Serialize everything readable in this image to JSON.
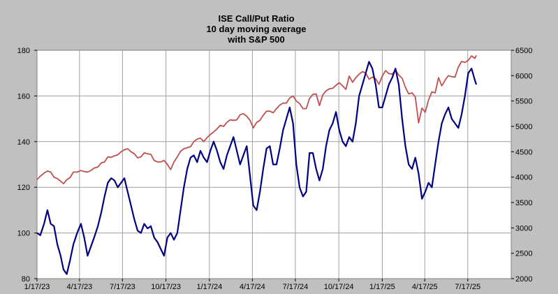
{
  "chart_data": {
    "type": "line",
    "title_lines": [
      "ISE  Call/Put Ratio",
      "10 day moving average",
      "with S&P 500"
    ],
    "colors": {
      "background": "#c0c0c0",
      "plot_background": "#ffffff",
      "grid": "#a0a0a0",
      "call_put_line": "#000080",
      "sp500_line": "#c0504d"
    },
    "x_ticks": [
      "1/17/23",
      "4/17/23",
      "7/17/23",
      "10/17/23",
      "1/17/24",
      "4/17/24",
      "7/17/24",
      "10/17/24",
      "1/17/25",
      "4/17/25",
      "7/17/25"
    ],
    "y_left": {
      "range": [
        80,
        180
      ],
      "ticks": [
        "80",
        "100",
        "120",
        "140",
        "160",
        "180"
      ]
    },
    "y_right": {
      "range": [
        2000,
        6500
      ],
      "ticks": [
        "2000",
        "2500",
        "3000",
        "3500",
        "4000",
        "4500",
        "5000",
        "5500",
        "6000",
        "6500"
      ]
    },
    "grid": true,
    "series": [
      {
        "axis": "left",
        "points": [
          [
            "1/17/23",
            100
          ],
          [
            "1/24/23",
            99
          ],
          [
            "2/1/23",
            104
          ],
          [
            "2/8/23",
            110
          ],
          [
            "2/15/23",
            104
          ],
          [
            "2/22/23",
            103
          ],
          [
            "3/1/23",
            95
          ],
          [
            "3/8/23",
            90
          ],
          [
            "3/14/23",
            84
          ],
          [
            "3/21/23",
            82
          ],
          [
            "3/28/23",
            88
          ],
          [
            "4/4/23",
            95
          ],
          [
            "4/12/23",
            100
          ],
          [
            "4/20/23",
            104
          ],
          [
            "4/27/23",
            98
          ],
          [
            "5/4/23",
            90
          ],
          [
            "5/11/23",
            94
          ],
          [
            "5/18/23",
            98
          ],
          [
            "5/26/23",
            103
          ],
          [
            "6/2/23",
            109
          ],
          [
            "6/9/23",
            116
          ],
          [
            "6/16/23",
            122
          ],
          [
            "6/23/23",
            124
          ],
          [
            "6/30/23",
            123
          ],
          [
            "7/7/23",
            120
          ],
          [
            "7/14/23",
            122
          ],
          [
            "7/21/23",
            124
          ],
          [
            "7/28/23",
            118
          ],
          [
            "8/4/23",
            112
          ],
          [
            "8/11/23",
            106
          ],
          [
            "8/18/23",
            101
          ],
          [
            "8/25/23",
            100
          ],
          [
            "9/1/23",
            104
          ],
          [
            "9/8/23",
            102
          ],
          [
            "9/15/23",
            103
          ],
          [
            "9/22/23",
            98
          ],
          [
            "9/29/23",
            96
          ],
          [
            "10/6/23",
            93
          ],
          [
            "10/13/23",
            90
          ],
          [
            "10/20/23",
            98
          ],
          [
            "10/27/23",
            100
          ],
          [
            "11/3/23",
            97
          ],
          [
            "11/10/23",
            100
          ],
          [
            "11/17/23",
            110
          ],
          [
            "11/24/23",
            120
          ],
          [
            "12/1/23",
            128
          ],
          [
            "12/8/23",
            133
          ],
          [
            "12/15/23",
            134
          ],
          [
            "12/22/23",
            131
          ],
          [
            "12/29/23",
            136
          ],
          [
            "1/5/24",
            133
          ],
          [
            "1/12/24",
            131
          ],
          [
            "1/19/24",
            136
          ],
          [
            "1/26/24",
            140
          ],
          [
            "2/2/24",
            136
          ],
          [
            "2/9/24",
            131
          ],
          [
            "2/16/24",
            128
          ],
          [
            "2/23/24",
            134
          ],
          [
            "3/1/24",
            138
          ],
          [
            "3/8/24",
            142
          ],
          [
            "3/15/24",
            136
          ],
          [
            "3/22/24",
            130
          ],
          [
            "3/29/24",
            134
          ],
          [
            "4/5/24",
            138
          ],
          [
            "4/12/24",
            125
          ],
          [
            "4/19/24",
            112
          ],
          [
            "4/26/24",
            110
          ],
          [
            "5/3/24",
            118
          ],
          [
            "5/10/24",
            128
          ],
          [
            "5/17/24",
            137
          ],
          [
            "5/24/24",
            138
          ],
          [
            "5/31/24",
            130
          ],
          [
            "6/7/24",
            130
          ],
          [
            "6/14/24",
            137
          ],
          [
            "6/21/24",
            145
          ],
          [
            "6/28/24",
            150
          ],
          [
            "7/5/24",
            155
          ],
          [
            "7/12/24",
            148
          ],
          [
            "7/19/24",
            130
          ],
          [
            "7/26/24",
            120
          ],
          [
            "8/2/24",
            116
          ],
          [
            "8/9/24",
            118
          ],
          [
            "8/16/24",
            135
          ],
          [
            "8/23/24",
            135
          ],
          [
            "8/30/24",
            128
          ],
          [
            "9/6/24",
            123
          ],
          [
            "9/13/24",
            128
          ],
          [
            "9/20/24",
            138
          ],
          [
            "9/27/24",
            145
          ],
          [
            "10/4/24",
            148
          ],
          [
            "10/11/24",
            153
          ],
          [
            "10/18/24",
            145
          ],
          [
            "10/25/24",
            140
          ],
          [
            "11/1/24",
            138
          ],
          [
            "11/8/24",
            142
          ],
          [
            "11/15/24",
            140
          ],
          [
            "11/22/24",
            148
          ],
          [
            "11/29/24",
            160
          ],
          [
            "12/6/24",
            165
          ],
          [
            "12/13/24",
            170
          ],
          [
            "12/20/24",
            175
          ],
          [
            "12/27/24",
            172
          ],
          [
            "1/3/25",
            165
          ],
          [
            "1/10/25",
            155
          ],
          [
            "1/17/25",
            155
          ],
          [
            "1/24/25",
            160
          ],
          [
            "1/31/25",
            165
          ],
          [
            "2/7/25",
            168
          ],
          [
            "2/14/25",
            172
          ],
          [
            "2/21/25",
            165
          ],
          [
            "2/28/25",
            150
          ],
          [
            "3/7/25",
            138
          ],
          [
            "3/14/25",
            130
          ],
          [
            "3/21/25",
            128
          ],
          [
            "3/28/25",
            133
          ],
          [
            "4/4/25",
            126
          ],
          [
            "4/11/25",
            115
          ],
          [
            "4/18/25",
            118
          ],
          [
            "4/25/25",
            122
          ],
          [
            "5/2/25",
            120
          ],
          [
            "5/9/25",
            130
          ],
          [
            "5/16/25",
            140
          ],
          [
            "5/23/25",
            148
          ],
          [
            "5/30/25",
            152
          ],
          [
            "6/6/25",
            155
          ],
          [
            "6/13/25",
            150
          ],
          [
            "6/20/25",
            148
          ],
          [
            "6/27/25",
            146
          ],
          [
            "7/4/25",
            152
          ],
          [
            "7/11/25",
            160
          ],
          [
            "7/18/25",
            170
          ],
          [
            "7/25/25",
            172
          ],
          [
            "8/1/25",
            167
          ],
          [
            "8/4/25",
            165
          ]
        ]
      },
      {
        "axis": "right",
        "points": [
          [
            "1/17/23",
            3950
          ],
          [
            "1/24/23",
            4020
          ],
          [
            "2/1/23",
            4080
          ],
          [
            "2/8/23",
            4120
          ],
          [
            "2/15/23",
            4100
          ],
          [
            "2/22/23",
            4000
          ],
          [
            "3/1/23",
            3970
          ],
          [
            "3/8/23",
            3920
          ],
          [
            "3/14/23",
            3870
          ],
          [
            "3/21/23",
            3950
          ],
          [
            "3/28/23",
            3990
          ],
          [
            "4/4/23",
            4100
          ],
          [
            "4/12/23",
            4100
          ],
          [
            "4/20/23",
            4130
          ],
          [
            "4/27/23",
            4110
          ],
          [
            "5/4/23",
            4100
          ],
          [
            "5/11/23",
            4130
          ],
          [
            "5/18/23",
            4180
          ],
          [
            "5/26/23",
            4200
          ],
          [
            "6/2/23",
            4280
          ],
          [
            "6/9/23",
            4300
          ],
          [
            "6/16/23",
            4400
          ],
          [
            "6/23/23",
            4390
          ],
          [
            "6/30/23",
            4420
          ],
          [
            "7/7/23",
            4440
          ],
          [
            "7/14/23",
            4500
          ],
          [
            "7/21/23",
            4540
          ],
          [
            "7/28/23",
            4560
          ],
          [
            "8/4/23",
            4500
          ],
          [
            "8/11/23",
            4460
          ],
          [
            "8/18/23",
            4380
          ],
          [
            "8/25/23",
            4400
          ],
          [
            "9/1/23",
            4480
          ],
          [
            "9/8/23",
            4460
          ],
          [
            "9/15/23",
            4450
          ],
          [
            "9/22/23",
            4330
          ],
          [
            "9/29/23",
            4300
          ],
          [
            "10/6/23",
            4300
          ],
          [
            "10/13/23",
            4330
          ],
          [
            "10/20/23",
            4250
          ],
          [
            "10/27/23",
            4150
          ],
          [
            "11/3/23",
            4300
          ],
          [
            "11/10/23",
            4400
          ],
          [
            "11/17/23",
            4510
          ],
          [
            "11/24/23",
            4560
          ],
          [
            "12/1/23",
            4580
          ],
          [
            "12/8/23",
            4600
          ],
          [
            "12/15/23",
            4700
          ],
          [
            "12/22/23",
            4750
          ],
          [
            "12/29/23",
            4770
          ],
          [
            "1/5/24",
            4700
          ],
          [
            "1/12/24",
            4780
          ],
          [
            "1/19/24",
            4840
          ],
          [
            "1/26/24",
            4890
          ],
          [
            "2/2/24",
            4950
          ],
          [
            "2/9/24",
            5020
          ],
          [
            "2/16/24",
            5000
          ],
          [
            "2/23/24",
            5080
          ],
          [
            "3/1/24",
            5130
          ],
          [
            "3/8/24",
            5120
          ],
          [
            "3/15/24",
            5130
          ],
          [
            "3/22/24",
            5230
          ],
          [
            "3/29/24",
            5250
          ],
          [
            "4/5/24",
            5200
          ],
          [
            "4/12/24",
            5120
          ],
          [
            "4/19/24",
            4970
          ],
          [
            "4/26/24",
            5080
          ],
          [
            "5/3/24",
            5120
          ],
          [
            "5/10/24",
            5220
          ],
          [
            "5/17/24",
            5300
          ],
          [
            "5/24/24",
            5300
          ],
          [
            "5/31/24",
            5270
          ],
          [
            "6/7/24",
            5350
          ],
          [
            "6/14/24",
            5420
          ],
          [
            "6/21/24",
            5460
          ],
          [
            "6/28/24",
            5460
          ],
          [
            "7/5/24",
            5560
          ],
          [
            "7/12/24",
            5600
          ],
          [
            "7/19/24",
            5500
          ],
          [
            "7/26/24",
            5450
          ],
          [
            "8/2/24",
            5350
          ],
          [
            "8/9/24",
            5350
          ],
          [
            "8/16/24",
            5550
          ],
          [
            "8/23/24",
            5630
          ],
          [
            "8/30/24",
            5640
          ],
          [
            "9/6/24",
            5410
          ],
          [
            "9/13/24",
            5620
          ],
          [
            "9/20/24",
            5700
          ],
          [
            "9/27/24",
            5740
          ],
          [
            "10/4/24",
            5750
          ],
          [
            "10/11/24",
            5810
          ],
          [
            "10/18/24",
            5860
          ],
          [
            "10/25/24",
            5800
          ],
          [
            "11/1/24",
            5730
          ],
          [
            "11/8/24",
            5990
          ],
          [
            "11/15/24",
            5870
          ],
          [
            "11/22/24",
            5960
          ],
          [
            "11/29/24",
            6030
          ],
          [
            "12/6/24",
            6080
          ],
          [
            "12/13/24",
            6050
          ],
          [
            "12/20/24",
            5930
          ],
          [
            "12/27/24",
            5970
          ],
          [
            "1/3/25",
            5940
          ],
          [
            "1/10/25",
            5830
          ],
          [
            "1/17/25",
            5990
          ],
          [
            "1/24/25",
            6100
          ],
          [
            "1/31/25",
            6040
          ],
          [
            "2/7/25",
            6030
          ],
          [
            "2/14/25",
            6110
          ],
          [
            "2/21/25",
            6010
          ],
          [
            "2/28/25",
            5950
          ],
          [
            "3/7/25",
            5770
          ],
          [
            "3/14/25",
            5640
          ],
          [
            "3/21/25",
            5660
          ],
          [
            "3/28/25",
            5580
          ],
          [
            "4/4/25",
            5070
          ],
          [
            "4/11/25",
            5360
          ],
          [
            "4/18/25",
            5280
          ],
          [
            "4/25/25",
            5520
          ],
          [
            "5/2/25",
            5680
          ],
          [
            "5/9/25",
            5660
          ],
          [
            "5/16/25",
            5960
          ],
          [
            "5/23/25",
            5800
          ],
          [
            "5/30/25",
            5910
          ],
          [
            "6/6/25",
            6000
          ],
          [
            "6/13/25",
            5980
          ],
          [
            "6/20/25",
            5970
          ],
          [
            "6/27/25",
            6170
          ],
          [
            "7/4/25",
            6280
          ],
          [
            "7/11/25",
            6260
          ],
          [
            "7/18/25",
            6300
          ],
          [
            "7/25/25",
            6390
          ],
          [
            "8/1/25",
            6340
          ],
          [
            "8/4/25",
            6400
          ]
        ]
      }
    ]
  }
}
